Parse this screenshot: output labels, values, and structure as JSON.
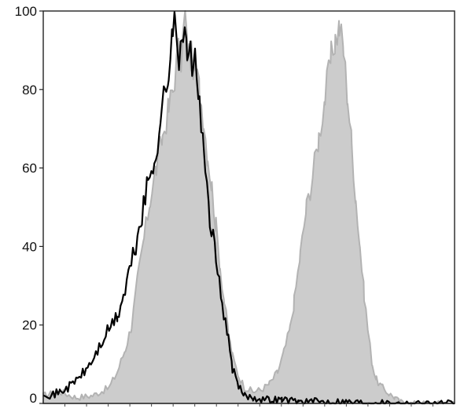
{
  "chart_data": {
    "type": "area",
    "title": "",
    "xlabel": "",
    "ylabel": "",
    "ylim": [
      0,
      100
    ],
    "xlim": [
      0,
      100
    ],
    "x_scale": "log-like (unlabeled)",
    "grid": false,
    "legend": "none",
    "yticks": [
      {
        "value": 0,
        "label": "0"
      },
      {
        "value": 20,
        "label": "20"
      },
      {
        "value": 40,
        "label": "40"
      },
      {
        "value": 60,
        "label": "60"
      },
      {
        "value": 80,
        "label": "80"
      },
      {
        "value": 100,
        "label": "100"
      }
    ],
    "x_minor_tick_count": 18,
    "series": [
      {
        "style": "filled-gray",
        "color": "#cccccc",
        "stroke": "#b3b3b3",
        "points": [
          [
            0,
            2
          ],
          [
            4,
            3
          ],
          [
            8,
            1.5
          ],
          [
            12,
            2
          ],
          [
            16,
            4
          ],
          [
            18,
            8
          ],
          [
            20,
            14
          ],
          [
            21.5,
            20
          ],
          [
            23,
            32
          ],
          [
            24.5,
            42
          ],
          [
            26,
            52
          ],
          [
            27.5,
            60
          ],
          [
            29,
            68
          ],
          [
            30.5,
            75
          ],
          [
            31.5,
            80
          ],
          [
            33,
            91
          ],
          [
            33.5,
            88
          ],
          [
            34.5,
            99
          ],
          [
            35,
            90
          ],
          [
            36,
            88
          ],
          [
            37,
            85
          ],
          [
            38,
            80
          ],
          [
            39,
            72
          ],
          [
            40,
            63
          ],
          [
            41,
            55
          ],
          [
            42,
            45
          ],
          [
            43,
            35
          ],
          [
            44,
            26
          ],
          [
            45,
            18
          ],
          [
            46,
            12
          ],
          [
            47.5,
            7
          ],
          [
            49,
            4
          ],
          [
            51,
            3
          ],
          [
            53,
            3.5
          ],
          [
            55,
            5
          ],
          [
            57,
            8
          ],
          [
            58.5,
            13
          ],
          [
            60,
            19
          ],
          [
            61,
            26
          ],
          [
            62.5,
            38
          ],
          [
            64,
            50
          ],
          [
            65.5,
            58
          ],
          [
            67,
            68
          ],
          [
            68.5,
            78
          ],
          [
            70,
            88
          ],
          [
            71,
            93
          ],
          [
            72,
            96
          ],
          [
            73,
            90
          ],
          [
            74,
            78
          ],
          [
            75,
            66
          ],
          [
            76,
            52
          ],
          [
            77,
            40
          ],
          [
            78,
            28
          ],
          [
            79,
            18
          ],
          [
            80,
            10
          ],
          [
            81,
            6
          ],
          [
            82.5,
            4
          ],
          [
            84,
            2.5
          ],
          [
            85.5,
            1.5
          ],
          [
            86.5,
            0.5
          ],
          [
            88,
            0
          ],
          [
            100,
            0
          ]
        ]
      },
      {
        "style": "line-black",
        "color": "#000000",
        "points": [
          [
            0,
            3
          ],
          [
            2,
            2
          ],
          [
            4,
            3
          ],
          [
            6,
            4
          ],
          [
            8,
            6
          ],
          [
            10,
            8
          ],
          [
            12,
            11
          ],
          [
            14,
            15
          ],
          [
            16,
            19
          ],
          [
            18,
            22
          ],
          [
            19.5,
            27
          ],
          [
            21,
            34
          ],
          [
            22.5,
            40
          ],
          [
            24,
            48
          ],
          [
            25.5,
            56
          ],
          [
            27,
            62
          ],
          [
            28.5,
            72
          ],
          [
            29.5,
            79
          ],
          [
            30.5,
            85
          ],
          [
            31.5,
            92
          ],
          [
            32,
            100
          ],
          [
            33,
            90
          ],
          [
            34,
            95
          ],
          [
            35,
            88
          ],
          [
            36.5,
            88
          ],
          [
            38,
            78
          ],
          [
            39,
            62
          ],
          [
            40.5,
            48
          ],
          [
            42,
            36
          ],
          [
            43.5,
            26
          ],
          [
            45,
            16
          ],
          [
            46,
            9
          ],
          [
            47.5,
            4
          ],
          [
            49,
            2
          ],
          [
            51,
            1.5
          ],
          [
            54,
            1
          ],
          [
            58,
            1
          ],
          [
            62,
            0.5
          ],
          [
            66,
            0.5
          ],
          [
            72,
            0.5
          ],
          [
            80,
            0.2
          ],
          [
            90,
            0
          ],
          [
            100,
            0
          ]
        ]
      }
    ]
  }
}
